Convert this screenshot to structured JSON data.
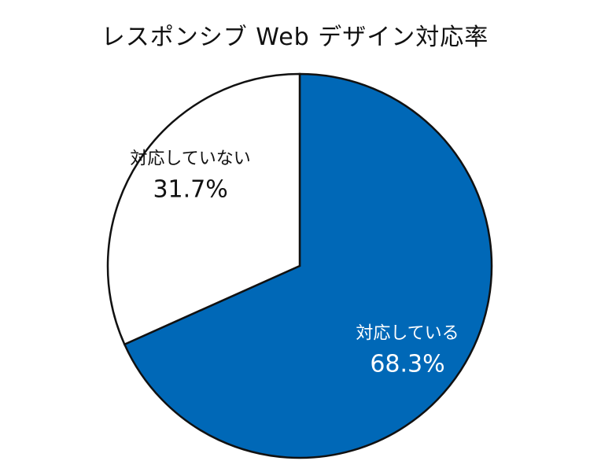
{
  "chart_data": {
    "type": "pie",
    "title": "レスポンシブ Web デザイン対応率",
    "slices": [
      {
        "label": "対応している",
        "value": 68.3,
        "display": "68.3%",
        "color": "#0068b7",
        "text_color": "#ffffff"
      },
      {
        "label": "対応していない",
        "value": 31.7,
        "display": "31.7%",
        "color": "#ffffff",
        "text_color": "#111111"
      }
    ],
    "start": "top",
    "direction": "clockwise",
    "legend": "none"
  }
}
